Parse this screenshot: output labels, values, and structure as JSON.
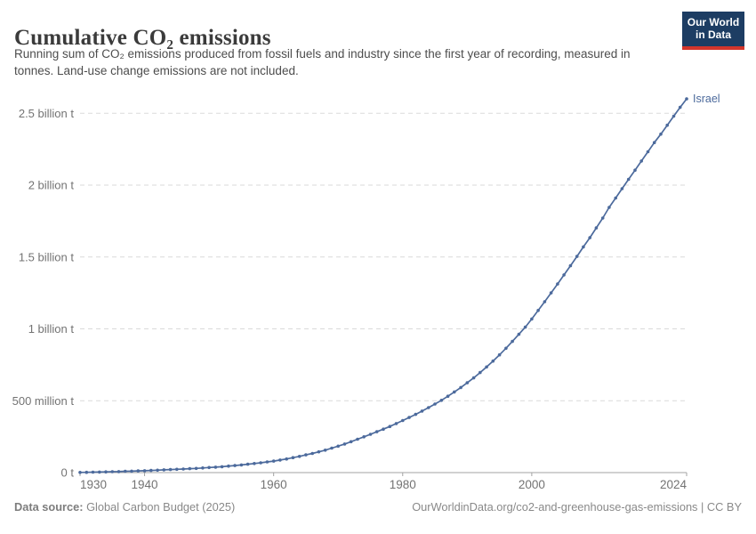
{
  "header": {
    "title": "Cumulative CO₂ emissions",
    "subtitle": "Running sum of CO₂ emissions produced from fossil fuels and industry since the first year of recording, measured in tonnes. Land-use change emissions are not included.",
    "logo": {
      "line1": "Our World",
      "line2": "in Data"
    }
  },
  "brand": {
    "navy": "#1d3d63",
    "red": "#d4352b"
  },
  "footer": {
    "source_label": "Data source:",
    "source_value": "Global Carbon Budget (2025)",
    "citation": "OurWorldinData.org/co2-and-greenhouse-gas-emissions | CC BY"
  },
  "chart_data": {
    "type": "line",
    "title": "Cumulative CO₂ emissions",
    "entity": "Israel",
    "unit": "t",
    "values_unit": "million tonnes",
    "grid": true,
    "legend_position": "end-of-line",
    "xlim": [
      1930,
      2024
    ],
    "ylim": [
      0,
      2600
    ],
    "colors": {
      "line": "#4c6a9c",
      "grid": "#dadada",
      "axis": "#a3a3a3",
      "tick_text": "#737373"
    },
    "y_ticks": [
      {
        "value": 0,
        "label": "0 t"
      },
      {
        "value": 500,
        "label": "500 million t"
      },
      {
        "value": 1000,
        "label": "1 billion t"
      },
      {
        "value": 1500,
        "label": "1.5 billion t"
      },
      {
        "value": 2000,
        "label": "2 billion t"
      },
      {
        "value": 2500,
        "label": "2.5 billion t"
      }
    ],
    "x_ticks": [
      {
        "value": 1930,
        "label": "1930"
      },
      {
        "value": 1940,
        "label": "1940"
      },
      {
        "value": 1960,
        "label": "1960"
      },
      {
        "value": 1980,
        "label": "1980"
      },
      {
        "value": 2000,
        "label": "2000"
      },
      {
        "value": 2024,
        "label": "2024"
      }
    ],
    "x": [
      1930,
      1931,
      1932,
      1933,
      1934,
      1935,
      1936,
      1937,
      1938,
      1939,
      1940,
      1941,
      1942,
      1943,
      1944,
      1945,
      1946,
      1947,
      1948,
      1949,
      1950,
      1951,
      1952,
      1953,
      1954,
      1955,
      1956,
      1957,
      1958,
      1959,
      1960,
      1961,
      1962,
      1963,
      1964,
      1965,
      1966,
      1967,
      1968,
      1969,
      1970,
      1971,
      1972,
      1973,
      1974,
      1975,
      1976,
      1977,
      1978,
      1979,
      1980,
      1981,
      1982,
      1983,
      1984,
      1985,
      1986,
      1987,
      1988,
      1989,
      1990,
      1991,
      1992,
      1993,
      1994,
      1995,
      1996,
      1997,
      1998,
      1999,
      2000,
      2001,
      2002,
      2003,
      2004,
      2005,
      2006,
      2007,
      2008,
      2009,
      2010,
      2011,
      2012,
      2013,
      2014,
      2015,
      2016,
      2017,
      2018,
      2019,
      2020,
      2021,
      2022,
      2023,
      2024
    ],
    "series": [
      {
        "name": "Israel",
        "values": [
          1,
          2,
          3,
          4,
          5,
          6,
          7,
          9,
          10,
          12,
          13,
          15,
          17,
          19,
          21,
          23,
          25,
          27,
          29,
          32,
          35,
          38,
          41,
          45,
          49,
          53,
          58,
          63,
          68,
          74,
          80,
          87,
          95,
          104,
          113,
          123,
          133,
          144,
          156,
          170,
          184,
          199,
          215,
          232,
          249,
          266,
          284,
          302,
          321,
          341,
          362,
          383,
          405,
          428,
          452,
          477,
          503,
          531,
          561,
          592,
          625,
          659,
          696,
          735,
          776,
          819,
          865,
          913,
          962,
          1012,
          1069,
          1128,
          1189,
          1250,
          1312,
          1375,
          1439,
          1504,
          1570,
          1634,
          1702,
          1771,
          1845,
          1910,
          1975,
          2040,
          2104,
          2168,
          2232,
          2296,
          2355,
          2417,
          2480,
          2541,
          2600
        ]
      }
    ]
  }
}
